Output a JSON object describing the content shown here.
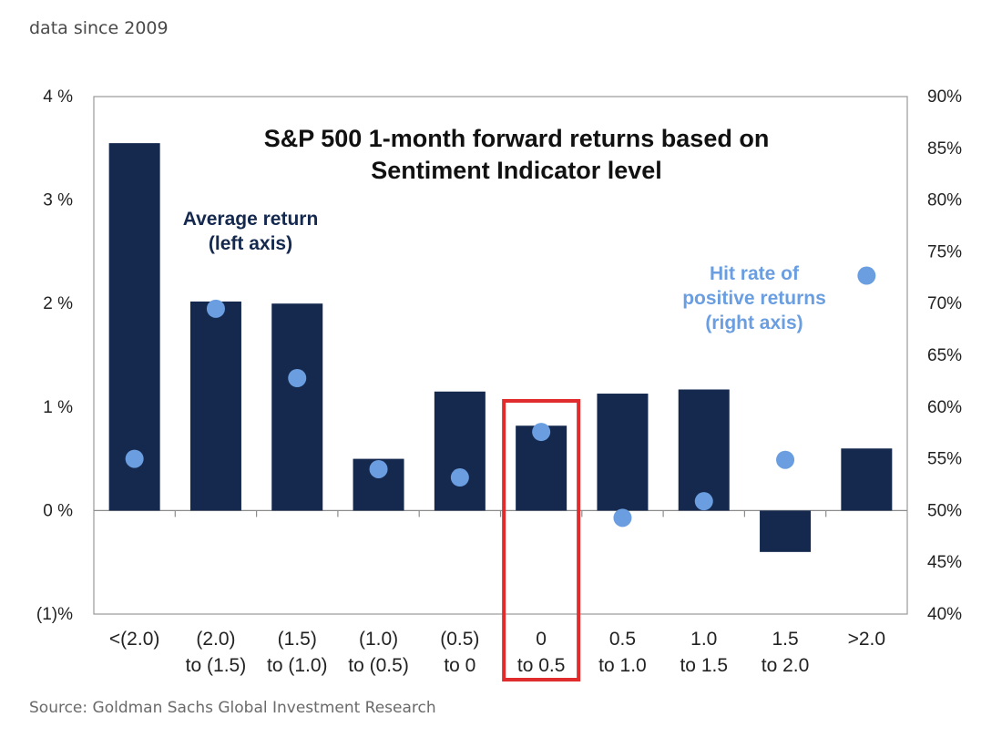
{
  "page": {
    "subtitle": "data since 2009",
    "source": "Source: Goldman Sachs Global Investment Research"
  },
  "colors": {
    "bar": "#15294f",
    "dot": "#6a9ee0",
    "hit_label": "#6a9ee0",
    "avg_label": "#15294f",
    "highlight": "#e02c2c"
  },
  "chart_data": {
    "type": "bar",
    "title": [
      "S&P 500 1-month forward returns based on",
      "Sentiment Indicator level"
    ],
    "categories": [
      [
        "<(2.0)"
      ],
      [
        "(2.0)",
        "to (1.5)"
      ],
      [
        "(1.5)",
        "to (1.0)"
      ],
      [
        "(1.0)",
        "to (0.5)"
      ],
      [
        "(0.5)",
        "to 0"
      ],
      [
        "0",
        "to 0.5"
      ],
      [
        "0.5",
        "to 1.0"
      ],
      [
        "1.0",
        "to 1.5"
      ],
      [
        "1.5",
        "to 2.0"
      ],
      [
        ">2.0"
      ]
    ],
    "series": [
      {
        "name": [
          "Average return",
          "(left axis)"
        ],
        "axis": "left",
        "kind": "bar",
        "values": [
          3.55,
          2.02,
          2.0,
          0.5,
          1.15,
          0.82,
          1.13,
          1.17,
          -0.4,
          0.6
        ]
      },
      {
        "name": [
          "Hit rate of",
          "positive returns",
          "(right axis)"
        ],
        "axis": "right",
        "kind": "dot",
        "values": [
          55.0,
          69.5,
          62.8,
          54.0,
          53.2,
          57.6,
          49.3,
          50.9,
          54.9,
          72.7
        ]
      }
    ],
    "left_axis": {
      "ylim": [
        -1,
        4
      ],
      "ticks": [
        4,
        3,
        2,
        1,
        0,
        -1
      ],
      "tick_labels": [
        "4 %",
        "3 %",
        "2 %",
        "1 %",
        "0 %",
        "(1)%"
      ]
    },
    "right_axis": {
      "ylim": [
        40,
        90
      ],
      "ticks": [
        90,
        85,
        80,
        75,
        70,
        65,
        60,
        55,
        50,
        45,
        40
      ],
      "tick_labels": [
        "90%",
        "85%",
        "80%",
        "75%",
        "70%",
        "65%",
        "60%",
        "55%",
        "50%",
        "45%",
        "40%"
      ]
    },
    "highlighted_category": 5,
    "grid": false
  }
}
